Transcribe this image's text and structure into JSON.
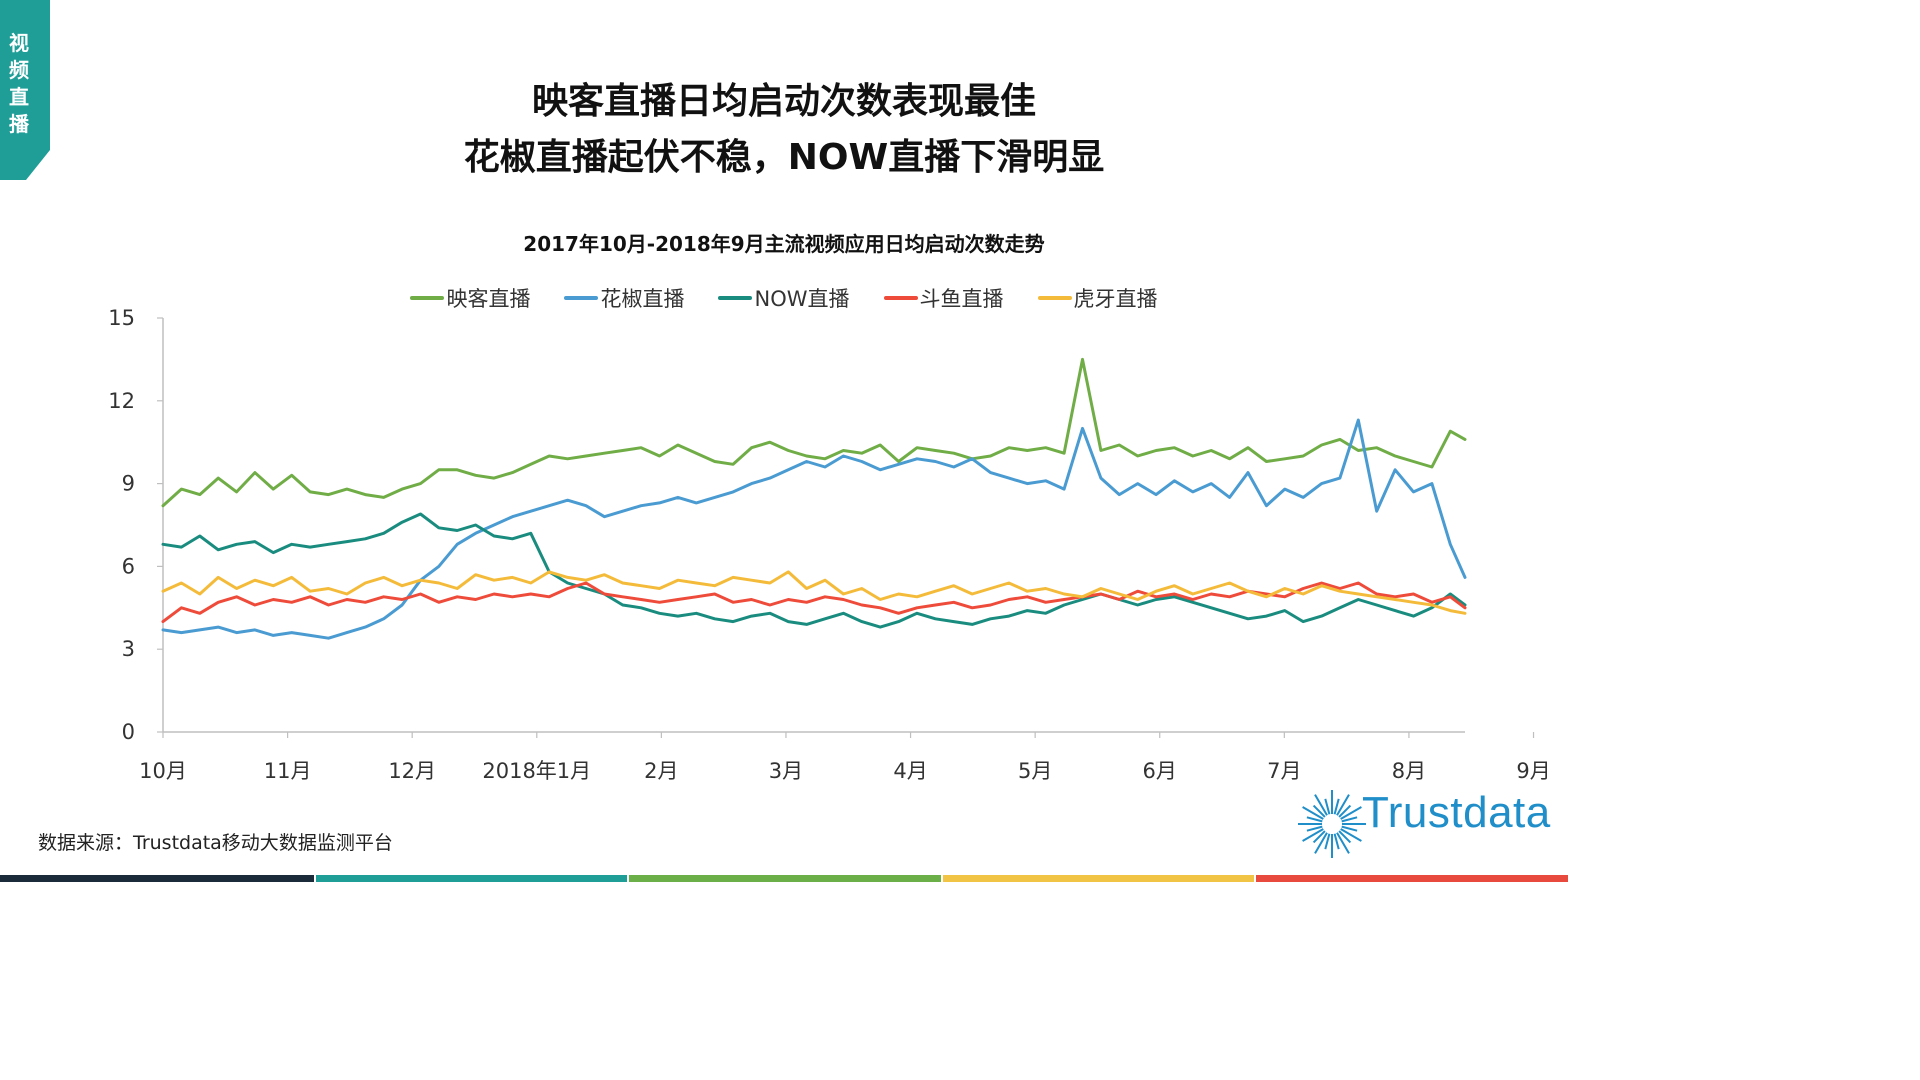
{
  "side_tab": {
    "label": "视频直播",
    "color": "#1f9e98"
  },
  "headline": {
    "line1": "映客直播日均启动次数表现最佳",
    "line2": "花椒直播起伏不稳，NOW直播下滑明显"
  },
  "source_note": "数据来源：Trustdata移动大数据监测平台",
  "logo": {
    "text": "Trustdata",
    "icon": "starburst-icon",
    "color": "#1f8ec9"
  },
  "footer_colors": [
    "#1c2b3a",
    "#1f9e98",
    "#6aaf47",
    "#f2c446",
    "#e84a3d"
  ],
  "chart_data": {
    "type": "line",
    "title": "2017年10月-2018年9月主流视频应用日均启动次数走势",
    "y_ticks": [
      "0",
      "3",
      "6",
      "9",
      "12",
      "15"
    ],
    "ylim": [
      0,
      15
    ],
    "x_ticks": [
      "10月",
      "11月",
      "12月",
      "2018年1月",
      "2月",
      "3月",
      "4月",
      "5月",
      "6月",
      "7月",
      "8月",
      "9月"
    ],
    "x_range_days": [
      0,
      354
    ],
    "x": [
      0,
      5,
      10,
      15,
      20,
      25,
      30,
      35,
      40,
      45,
      50,
      55,
      60,
      65,
      70,
      75,
      80,
      85,
      90,
      95,
      100,
      105,
      110,
      115,
      120,
      125,
      130,
      135,
      140,
      145,
      150,
      155,
      160,
      165,
      170,
      175,
      180,
      185,
      190,
      195,
      200,
      205,
      210,
      215,
      220,
      225,
      230,
      235,
      240,
      245,
      250,
      255,
      260,
      265,
      270,
      275,
      280,
      285,
      290,
      295,
      300,
      305,
      310,
      315,
      320,
      325,
      330,
      335,
      340,
      345,
      350,
      354
    ],
    "legend_position": "top",
    "grid": false,
    "series": [
      {
        "name": "映客直播",
        "color": "#70ad47",
        "values": [
          8.2,
          8.8,
          8.6,
          9.2,
          8.7,
          9.4,
          8.8,
          9.3,
          8.7,
          8.6,
          8.8,
          8.6,
          8.5,
          8.8,
          9.0,
          9.5,
          9.5,
          9.3,
          9.2,
          9.4,
          9.7,
          10.0,
          9.9,
          10.0,
          10.1,
          10.2,
          10.3,
          10.0,
          10.4,
          10.1,
          9.8,
          9.7,
          10.3,
          10.5,
          10.2,
          10.0,
          9.9,
          10.2,
          10.1,
          10.4,
          9.8,
          10.3,
          10.2,
          10.1,
          9.9,
          10.0,
          10.3,
          10.2,
          10.3,
          10.1,
          13.5,
          10.2,
          10.4,
          10.0,
          10.2,
          10.3,
          10.0,
          10.2,
          9.9,
          10.3,
          9.8,
          9.9,
          10.0,
          10.4,
          10.6,
          10.2,
          10.3,
          10.0,
          9.8,
          9.6,
          10.9,
          10.6
        ]
      },
      {
        "name": "花椒直播",
        "color": "#4a9bd1",
        "values": [
          3.7,
          3.6,
          3.7,
          3.8,
          3.6,
          3.7,
          3.5,
          3.6,
          3.5,
          3.4,
          3.6,
          3.8,
          4.1,
          4.6,
          5.5,
          6.0,
          6.8,
          7.2,
          7.5,
          7.8,
          8.0,
          8.2,
          8.4,
          8.2,
          7.8,
          8.0,
          8.2,
          8.3,
          8.5,
          8.3,
          8.5,
          8.7,
          9.0,
          9.2,
          9.5,
          9.8,
          9.6,
          10.0,
          9.8,
          9.5,
          9.7,
          9.9,
          9.8,
          9.6,
          9.9,
          9.4,
          9.2,
          9.0,
          9.1,
          8.8,
          11.0,
          9.2,
          8.6,
          9.0,
          8.6,
          9.1,
          8.7,
          9.0,
          8.5,
          9.4,
          8.2,
          8.8,
          8.5,
          9.0,
          9.2,
          11.3,
          8.0,
          9.5,
          8.7,
          9.0,
          6.8,
          5.6
        ]
      },
      {
        "name": "NOW直播",
        "color": "#1a8c7f",
        "values": [
          6.8,
          6.7,
          7.1,
          6.6,
          6.8,
          6.9,
          6.5,
          6.8,
          6.7,
          6.8,
          6.9,
          7.0,
          7.2,
          7.6,
          7.9,
          7.4,
          7.3,
          7.5,
          7.1,
          7.0,
          7.2,
          5.8,
          5.4,
          5.2,
          5.0,
          4.6,
          4.5,
          4.3,
          4.2,
          4.3,
          4.1,
          4.0,
          4.2,
          4.3,
          4.0,
          3.9,
          4.1,
          4.3,
          4.0,
          3.8,
          4.0,
          4.3,
          4.1,
          4.0,
          3.9,
          4.1,
          4.2,
          4.4,
          4.3,
          4.6,
          4.8,
          5.0,
          4.8,
          4.6,
          4.8,
          4.9,
          4.7,
          4.5,
          4.3,
          4.1,
          4.2,
          4.4,
          4.0,
          4.2,
          4.5,
          4.8,
          4.6,
          4.4,
          4.2,
          4.5,
          5.0,
          4.6
        ]
      },
      {
        "name": "斗鱼直播",
        "color": "#ee4b3b",
        "values": [
          4.0,
          4.5,
          4.3,
          4.7,
          4.9,
          4.6,
          4.8,
          4.7,
          4.9,
          4.6,
          4.8,
          4.7,
          4.9,
          4.8,
          5.0,
          4.7,
          4.9,
          4.8,
          5.0,
          4.9,
          5.0,
          4.9,
          5.2,
          5.4,
          5.0,
          4.9,
          4.8,
          4.7,
          4.8,
          4.9,
          5.0,
          4.7,
          4.8,
          4.6,
          4.8,
          4.7,
          4.9,
          4.8,
          4.6,
          4.5,
          4.3,
          4.5,
          4.6,
          4.7,
          4.5,
          4.6,
          4.8,
          4.9,
          4.7,
          4.8,
          4.9,
          5.0,
          4.8,
          5.1,
          4.9,
          5.0,
          4.8,
          5.0,
          4.9,
          5.1,
          5.0,
          4.9,
          5.2,
          5.4,
          5.2,
          5.4,
          5.0,
          4.9,
          5.0,
          4.7,
          4.9,
          4.5
        ]
      },
      {
        "name": "虎牙直播",
        "color": "#f4bb3a",
        "values": [
          5.1,
          5.4,
          5.0,
          5.6,
          5.2,
          5.5,
          5.3,
          5.6,
          5.1,
          5.2,
          5.0,
          5.4,
          5.6,
          5.3,
          5.5,
          5.4,
          5.2,
          5.7,
          5.5,
          5.6,
          5.4,
          5.8,
          5.6,
          5.5,
          5.7,
          5.4,
          5.3,
          5.2,
          5.5,
          5.4,
          5.3,
          5.6,
          5.5,
          5.4,
          5.8,
          5.2,
          5.5,
          5.0,
          5.2,
          4.8,
          5.0,
          4.9,
          5.1,
          5.3,
          5.0,
          5.2,
          5.4,
          5.1,
          5.2,
          5.0,
          4.9,
          5.2,
          5.0,
          4.8,
          5.1,
          5.3,
          5.0,
          5.2,
          5.4,
          5.1,
          4.9,
          5.2,
          5.0,
          5.3,
          5.1,
          5.0,
          4.9,
          4.8,
          4.7,
          4.6,
          4.4,
          4.3
        ]
      }
    ]
  }
}
